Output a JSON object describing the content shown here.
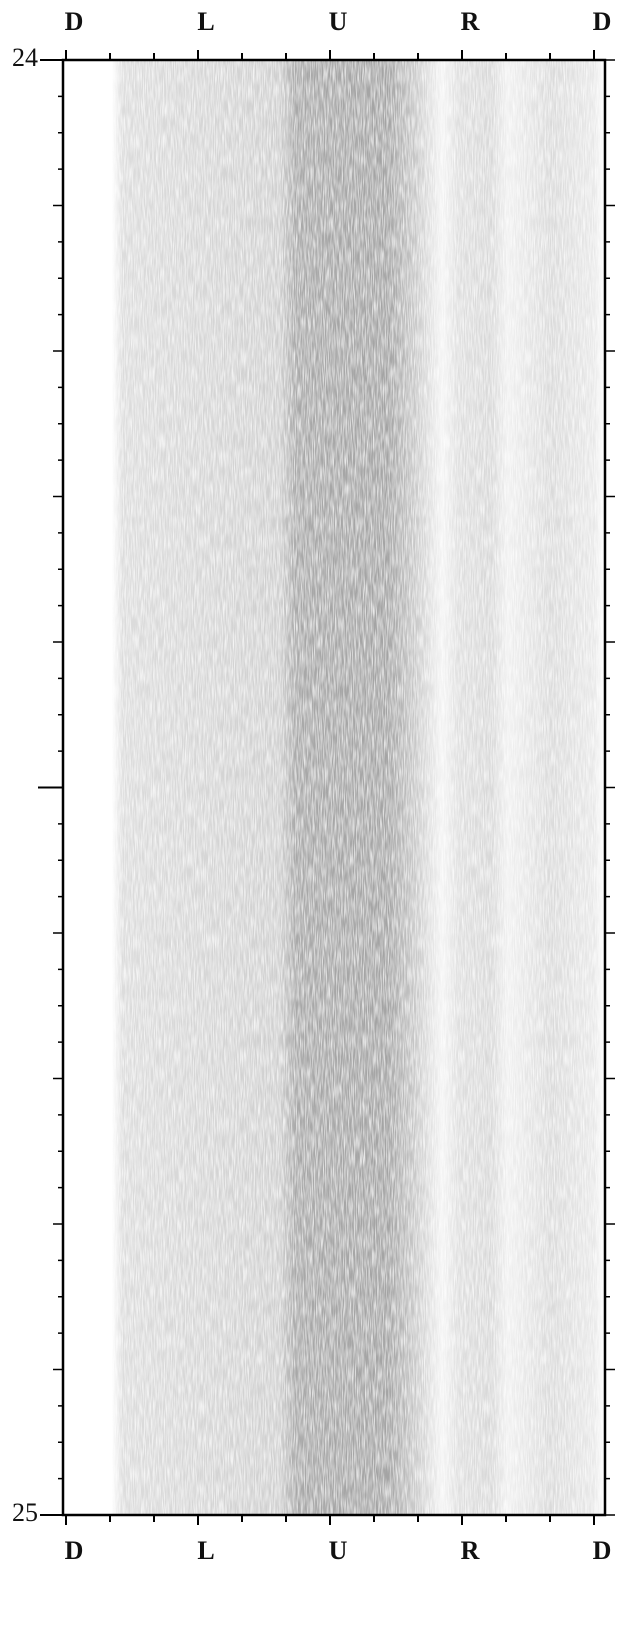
{
  "chart_data": {
    "type": "image-log",
    "categories": [
      "D",
      "L",
      "U",
      "R",
      "D"
    ],
    "ylim": [
      24,
      25
    ],
    "yticks": [
      24,
      25
    ]
  }
}
